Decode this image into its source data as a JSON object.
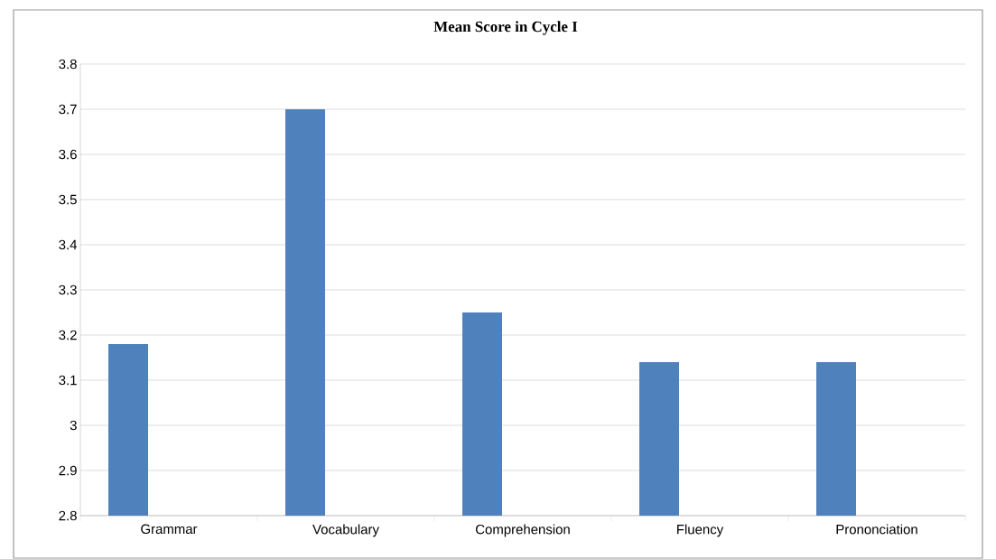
{
  "chart_data": {
    "type": "bar",
    "title": "Mean Score in Cycle I",
    "categories": [
      "Grammar",
      "Vocabulary",
      "Comprehension",
      "Fluency",
      "Prononciation"
    ],
    "values": [
      3.18,
      3.7,
      3.25,
      3.14,
      3.14
    ],
    "color": "#4f81bd",
    "ylim": [
      2.8,
      3.8
    ],
    "yticks": [
      2.8,
      2.9,
      3,
      3.1,
      3.2,
      3.3,
      3.4,
      3.5,
      3.6,
      3.7,
      3.8
    ],
    "grid": "y"
  }
}
